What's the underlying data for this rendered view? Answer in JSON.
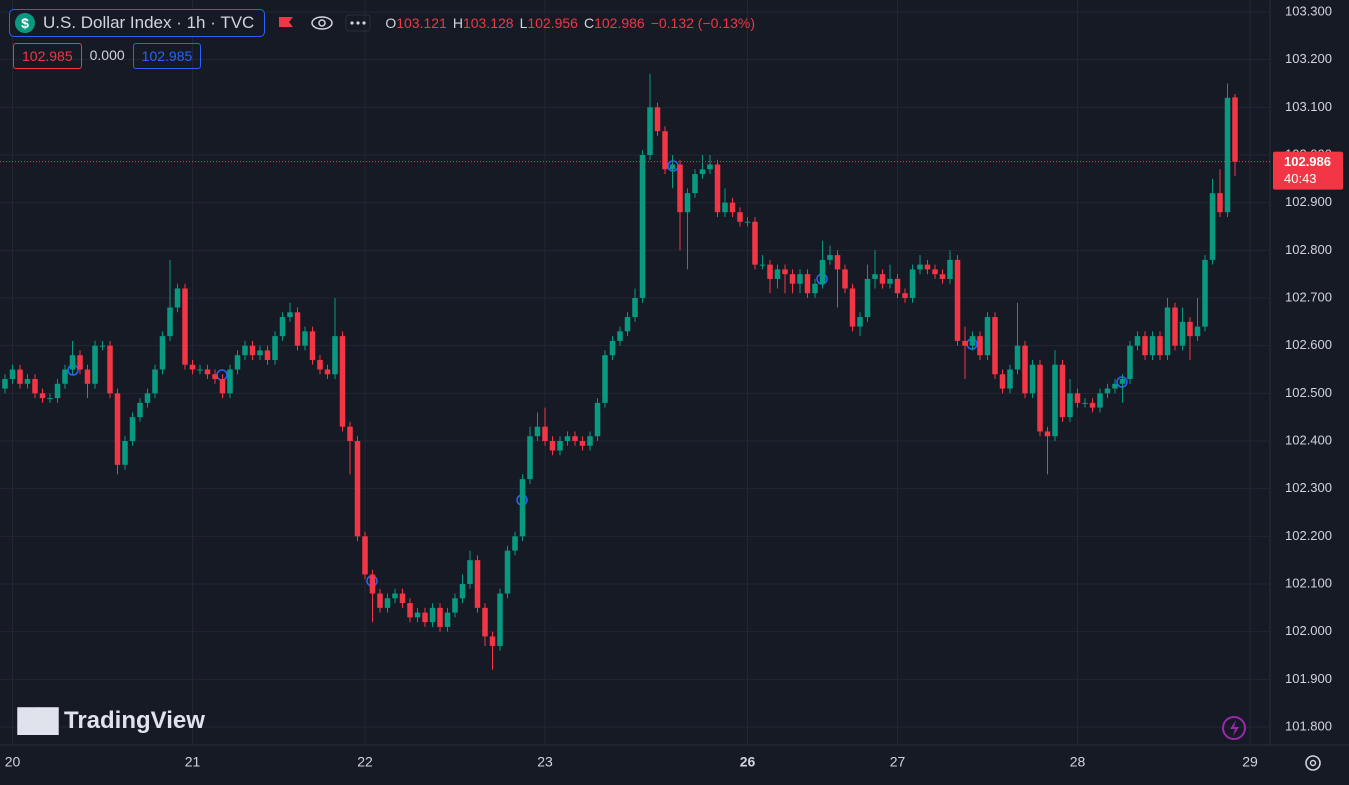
{
  "chart_data": {
    "type": "candlestick",
    "title": "U.S. Dollar Index · 1h · TVC",
    "legend": [
      {
        "label": "O",
        "value": 103.121
      },
      {
        "label": "H",
        "value": 103.128
      },
      {
        "label": "L",
        "value": 102.956
      },
      {
        "label": "C",
        "value": 102.986
      }
    ],
    "change_label": "−0.132 (−0.13%)",
    "inputs": [
      "102.985",
      "0.000",
      "102.985"
    ],
    "watermark": "TradingView",
    "last_price": 102.986,
    "countdown": "40:43",
    "up_color": "#089981",
    "down_color": "#f23645",
    "ylim": [
      101.8,
      103.3
    ],
    "yticks": [
      {
        "value": 101.8,
        "label": "101.800"
      },
      {
        "value": 101.9,
        "label": "101.900"
      },
      {
        "value": 102.0,
        "label": "102.000"
      },
      {
        "value": 102.1,
        "label": "102.100"
      },
      {
        "value": 102.2,
        "label": "102.200"
      },
      {
        "value": 102.3,
        "label": "102.300"
      },
      {
        "value": 102.4,
        "label": "102.400"
      },
      {
        "value": 102.5,
        "label": "102.500"
      },
      {
        "value": 102.6,
        "label": "102.600"
      },
      {
        "value": 102.7,
        "label": "102.700"
      },
      {
        "value": 102.8,
        "label": "102.800"
      },
      {
        "value": 102.9,
        "label": "102.900"
      },
      {
        "value": 103.0,
        "label": "103.000"
      },
      {
        "value": 103.1,
        "label": "103.100"
      },
      {
        "value": 103.2,
        "label": "103.200"
      },
      {
        "value": 103.3,
        "label": "103.300"
      }
    ],
    "xticks": [
      {
        "value": 1,
        "label": "20"
      },
      {
        "value": 25,
        "label": "21"
      },
      {
        "value": 48,
        "label": "22"
      },
      {
        "value": 72,
        "label": "23"
      },
      {
        "value": 99,
        "label": "26"
      },
      {
        "value": 119,
        "label": "27"
      },
      {
        "value": 143,
        "label": "28"
      },
      {
        "value": 166,
        "label": "29"
      }
    ],
    "open": [
      102.51,
      102.53,
      102.55,
      102.52,
      102.53,
      102.5,
      102.49,
      102.49,
      102.52,
      102.55,
      102.58,
      102.55,
      102.52,
      102.6,
      102.6,
      102.5,
      102.35,
      102.4,
      102.45,
      102.48,
      102.5,
      102.55,
      102.62,
      102.68,
      102.72,
      102.56,
      102.55,
      102.55,
      102.54,
      102.53,
      102.5,
      102.55,
      102.58,
      102.6,
      102.58,
      102.59,
      102.57,
      102.62,
      102.66,
      102.67,
      102.6,
      102.63,
      102.57,
      102.55,
      102.54,
      102.62,
      102.43,
      102.4,
      102.2,
      102.12,
      102.08,
      102.05,
      102.07,
      102.08,
      102.06,
      102.03,
      102.04,
      102.02,
      102.05,
      102.01,
      102.04,
      102.07,
      102.1,
      102.15,
      102.05,
      101.99,
      101.97,
      102.08,
      102.17,
      102.2,
      102.32,
      102.41,
      102.43,
      102.4,
      102.38,
      102.4,
      102.41,
      102.4,
      102.39,
      102.41,
      102.48,
      102.58,
      102.61,
      102.63,
      102.66,
      102.7,
      103.0,
      103.1,
      103.05,
      102.97,
      102.98,
      102.88,
      102.92,
      102.96,
      102.97,
      102.98,
      102.88,
      102.9,
      102.88,
      102.86,
      102.86,
      102.77,
      102.77,
      102.74,
      102.76,
      102.75,
      102.73,
      102.75,
      102.71,
      102.73,
      102.78,
      102.79,
      102.76,
      102.72,
      102.64,
      102.66,
      102.74,
      102.75,
      102.73,
      102.74,
      102.71,
      102.7,
      102.76,
      102.77,
      102.76,
      102.75,
      102.74,
      102.78,
      102.61,
      102.6,
      102.62,
      102.58,
      102.66,
      102.54,
      102.51,
      102.55,
      102.6,
      102.5,
      102.56,
      102.42,
      102.41,
      102.56,
      102.45,
      102.5,
      102.48,
      102.48,
      102.47,
      102.5,
      102.51,
      102.52,
      102.53,
      102.6,
      102.62,
      102.58,
      102.62,
      102.58,
      102.68,
      102.6,
      102.65,
      102.62,
      102.64,
      102.78,
      102.92,
      102.88,
      103.121
    ],
    "high": [
      102.54,
      102.56,
      102.56,
      102.54,
      102.54,
      102.51,
      102.5,
      102.53,
      102.56,
      102.61,
      102.59,
      102.56,
      102.61,
      102.61,
      102.61,
      102.51,
      102.41,
      102.46,
      102.49,
      102.51,
      102.56,
      102.63,
      102.78,
      102.73,
      102.73,
      102.57,
      102.56,
      102.56,
      102.55,
      102.54,
      102.56,
      102.59,
      102.61,
      102.61,
      102.6,
      102.6,
      102.63,
      102.67,
      102.69,
      102.68,
      102.64,
      102.64,
      102.58,
      102.56,
      102.7,
      102.63,
      102.44,
      102.41,
      102.21,
      102.13,
      102.09,
      102.08,
      102.09,
      102.09,
      102.07,
      102.05,
      102.05,
      102.06,
      102.06,
      102.05,
      102.08,
      102.12,
      102.17,
      102.16,
      102.06,
      102.0,
      102.09,
      102.18,
      102.21,
      102.33,
      102.43,
      102.46,
      102.47,
      102.41,
      102.41,
      102.42,
      102.42,
      102.41,
      102.42,
      102.49,
      102.59,
      102.62,
      102.64,
      102.67,
      102.72,
      103.01,
      103.17,
      103.11,
      103.06,
      103.0,
      102.99,
      102.93,
      102.97,
      103.0,
      103.0,
      102.99,
      102.93,
      102.91,
      102.89,
      102.87,
      102.87,
      102.79,
      102.78,
      102.77,
      102.77,
      102.76,
      102.76,
      102.76,
      102.74,
      102.82,
      102.81,
      102.8,
      102.77,
      102.73,
      102.67,
      102.77,
      102.8,
      102.76,
      102.77,
      102.75,
      102.72,
      102.77,
      102.79,
      102.78,
      102.77,
      102.76,
      102.8,
      102.79,
      102.64,
      102.63,
      102.63,
      102.67,
      102.67,
      102.55,
      102.56,
      102.69,
      102.61,
      102.57,
      102.57,
      102.43,
      102.59,
      102.57,
      102.53,
      102.51,
      102.49,
      102.49,
      102.51,
      102.52,
      102.53,
      102.54,
      102.61,
      102.63,
      102.63,
      102.63,
      102.63,
      102.7,
      102.69,
      102.68,
      102.66,
      102.7,
      102.79,
      102.95,
      102.97,
      103.15,
      103.128
    ],
    "low": [
      102.5,
      102.52,
      102.51,
      102.51,
      102.49,
      102.48,
      102.48,
      102.48,
      102.51,
      102.54,
      102.54,
      102.49,
      102.51,
      102.59,
      102.49,
      102.33,
      102.34,
      102.39,
      102.44,
      102.47,
      102.49,
      102.54,
      102.61,
      102.67,
      102.55,
      102.54,
      102.54,
      102.53,
      102.52,
      102.49,
      102.49,
      102.54,
      102.57,
      102.57,
      102.57,
      102.56,
      102.56,
      102.61,
      102.65,
      102.59,
      102.59,
      102.56,
      102.54,
      102.53,
      102.53,
      102.42,
      102.33,
      102.19,
      102.11,
      102.02,
      102.04,
      102.04,
      102.06,
      102.05,
      102.02,
      102.02,
      102.01,
      102.01,
      102.0,
      102.0,
      102.03,
      102.06,
      102.09,
      102.04,
      101.97,
      101.92,
      101.96,
      102.07,
      102.16,
      102.19,
      102.31,
      102.4,
      102.39,
      102.37,
      102.37,
      102.39,
      102.39,
      102.38,
      102.38,
      102.4,
      102.47,
      102.57,
      102.6,
      102.62,
      102.65,
      102.69,
      102.99,
      103.04,
      102.96,
      102.93,
      102.8,
      102.76,
      102.91,
      102.95,
      102.96,
      102.87,
      102.87,
      102.87,
      102.85,
      102.85,
      102.76,
      102.76,
      102.71,
      102.72,
      102.71,
      102.71,
      102.71,
      102.7,
      102.7,
      102.72,
      102.77,
      102.68,
      102.71,
      102.63,
      102.62,
      102.65,
      102.72,
      102.72,
      102.72,
      102.7,
      102.69,
      102.69,
      102.75,
      102.75,
      102.74,
      102.73,
      102.73,
      102.6,
      102.53,
      102.59,
      102.57,
      102.57,
      102.53,
      102.5,
      102.5,
      102.54,
      102.49,
      102.49,
      102.41,
      102.33,
      102.4,
      102.44,
      102.44,
      102.47,
      102.47,
      102.46,
      102.46,
      102.49,
      102.5,
      102.48,
      102.52,
      102.59,
      102.57,
      102.57,
      102.57,
      102.57,
      102.59,
      102.59,
      102.57,
      102.61,
      102.63,
      102.77,
      102.87,
      102.87,
      102.956
    ],
    "close": [
      102.53,
      102.55,
      102.52,
      102.53,
      102.5,
      102.49,
      102.49,
      102.52,
      102.55,
      102.58,
      102.55,
      102.52,
      102.6,
      102.6,
      102.5,
      102.35,
      102.4,
      102.45,
      102.48,
      102.5,
      102.55,
      102.62,
      102.68,
      102.72,
      102.56,
      102.55,
      102.55,
      102.54,
      102.53,
      102.5,
      102.55,
      102.58,
      102.6,
      102.58,
      102.59,
      102.57,
      102.62,
      102.66,
      102.67,
      102.6,
      102.63,
      102.57,
      102.55,
      102.54,
      102.62,
      102.43,
      102.4,
      102.2,
      102.12,
      102.08,
      102.05,
      102.07,
      102.08,
      102.06,
      102.03,
      102.04,
      102.02,
      102.05,
      102.01,
      102.04,
      102.07,
      102.1,
      102.15,
      102.05,
      101.99,
      101.97,
      102.08,
      102.17,
      102.2,
      102.32,
      102.41,
      102.43,
      102.4,
      102.38,
      102.4,
      102.41,
      102.4,
      102.39,
      102.41,
      102.48,
      102.58,
      102.61,
      102.63,
      102.66,
      102.7,
      103.0,
      103.1,
      103.05,
      102.97,
      102.98,
      102.88,
      102.92,
      102.96,
      102.97,
      102.98,
      102.88,
      102.9,
      102.88,
      102.86,
      102.86,
      102.77,
      102.77,
      102.74,
      102.76,
      102.75,
      102.73,
      102.75,
      102.71,
      102.73,
      102.78,
      102.79,
      102.76,
      102.72,
      102.64,
      102.66,
      102.74,
      102.75,
      102.73,
      102.74,
      102.71,
      102.7,
      102.76,
      102.77,
      102.76,
      102.75,
      102.74,
      102.78,
      102.61,
      102.6,
      102.62,
      102.58,
      102.66,
      102.54,
      102.51,
      102.55,
      102.6,
      102.5,
      102.56,
      102.42,
      102.41,
      102.56,
      102.45,
      102.5,
      102.48,
      102.48,
      102.47,
      102.5,
      102.51,
      102.52,
      102.53,
      102.6,
      102.62,
      102.58,
      102.62,
      102.58,
      102.68,
      102.6,
      102.65,
      102.62,
      102.64,
      102.78,
      102.92,
      102.88,
      103.12,
      102.986
    ]
  }
}
